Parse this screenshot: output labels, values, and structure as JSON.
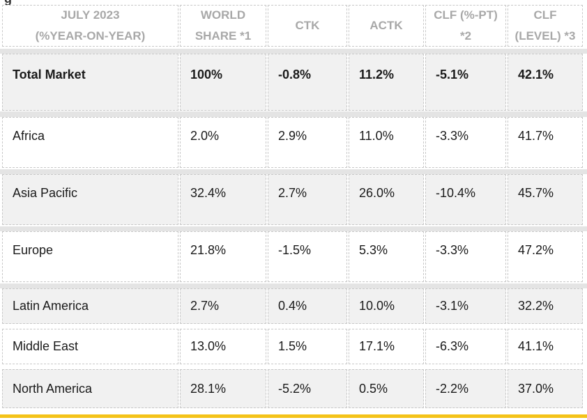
{
  "partial_top_text": "g",
  "table": {
    "headers": [
      [
        "JULY 2023",
        "(%YEAR-ON-YEAR)"
      ],
      [
        "WORLD",
        "SHARE *1"
      ],
      [
        "CTK"
      ],
      [
        "ACTK"
      ],
      [
        "CLF (%-PT)",
        "*2"
      ],
      [
        "CLF",
        "(LEVEL) *3"
      ]
    ],
    "rows": [
      [
        "Total Market",
        "100%",
        "-0.8%",
        "11.2%",
        "-5.1%",
        "42.1%"
      ],
      [
        "Africa",
        "2.0%",
        "2.9%",
        "11.0%",
        "-3.3%",
        "41.7%"
      ],
      [
        "Asia Pacific",
        "32.4%",
        "2.7%",
        "26.0%",
        "-10.4%",
        "45.7%"
      ],
      [
        "Europe",
        "21.8%",
        "-1.5%",
        "5.3%",
        "-3.3%",
        "47.2%"
      ],
      [
        "Latin America",
        "2.7%",
        "0.4%",
        "10.0%",
        "-3.1%",
        "32.2%"
      ],
      [
        "Middle East",
        "13.0%",
        "1.5%",
        "17.1%",
        "-6.3%",
        "41.1%"
      ],
      [
        "North America",
        "28.1%",
        "-5.2%",
        "0.5%",
        "-2.2%",
        "37.0%"
      ]
    ]
  }
}
